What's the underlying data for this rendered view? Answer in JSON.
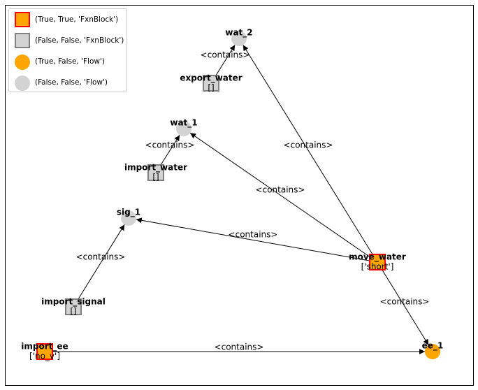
{
  "legend": {
    "entries": [
      {
        "label": "(True, True, 'FxnBlock')",
        "shape": "square",
        "fill": "#FFA500",
        "stroke": "#FF0000"
      },
      {
        "label": "(False, False, 'FxnBlock')",
        "shape": "square",
        "fill": "#D3D3D3",
        "stroke": "#808080"
      },
      {
        "label": "(True, False, 'Flow')",
        "shape": "circle",
        "fill": "#FFA500",
        "stroke": "none"
      },
      {
        "label": "(False, False, 'Flow')",
        "shape": "circle",
        "fill": "#D3D3D3",
        "stroke": "none"
      }
    ]
  },
  "nodes": [
    {
      "id": "wat_2",
      "title": "wat_2",
      "sub": "",
      "kind": "flow",
      "state": "nominal"
    },
    {
      "id": "export_water",
      "title": "export_water",
      "sub": "[]",
      "kind": "block",
      "state": "nominal"
    },
    {
      "id": "wat_1",
      "title": "wat_1",
      "sub": "",
      "kind": "flow",
      "state": "nominal"
    },
    {
      "id": "import_water",
      "title": "import_water",
      "sub": "[]",
      "kind": "block",
      "state": "nominal"
    },
    {
      "id": "sig_1",
      "title": "sig_1",
      "sub": "",
      "kind": "flow",
      "state": "nominal"
    },
    {
      "id": "move_water",
      "title": "move_water",
      "sub": "['short']",
      "kind": "block",
      "state": "faulty"
    },
    {
      "id": "import_signal",
      "title": "import_signal",
      "sub": "[]",
      "kind": "block",
      "state": "nominal"
    },
    {
      "id": "import_ee",
      "title": "import_ee",
      "sub": "['no_v']",
      "kind": "block",
      "state": "faulty"
    },
    {
      "id": "ee_1",
      "title": "ee_1",
      "sub": "",
      "kind": "flow",
      "state": "faulty"
    }
  ],
  "edges": [
    {
      "from": "export_water",
      "to": "wat_2",
      "label": "<contains>"
    },
    {
      "from": "move_water",
      "to": "wat_2",
      "label": "<contains>"
    },
    {
      "from": "import_water",
      "to": "wat_1",
      "label": "<contains>"
    },
    {
      "from": "move_water",
      "to": "wat_1",
      "label": "<contains>"
    },
    {
      "from": "move_water",
      "to": "sig_1",
      "label": "<contains>"
    },
    {
      "from": "import_signal",
      "to": "sig_1",
      "label": "<contains>"
    },
    {
      "from": "move_water",
      "to": "ee_1",
      "label": "<contains>"
    },
    {
      "from": "import_ee",
      "to": "ee_1",
      "label": "<contains>"
    }
  ]
}
